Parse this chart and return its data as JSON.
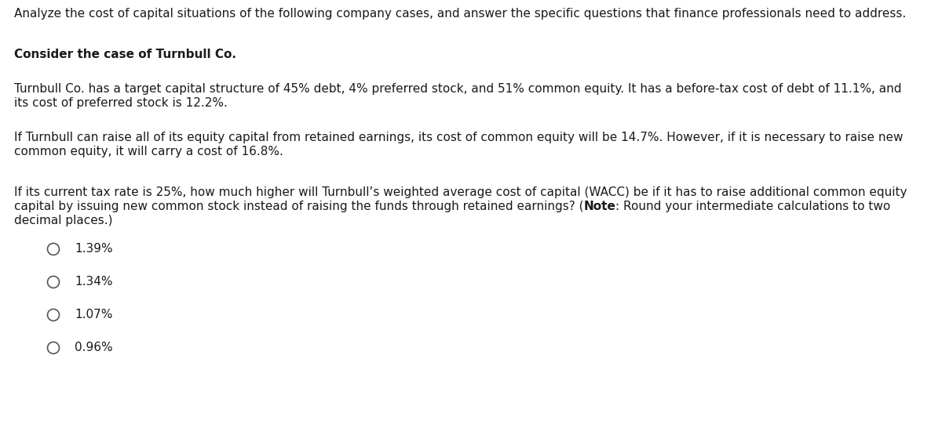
{
  "bg_color": "#ffffff",
  "text_color": "#1a1a1a",
  "intro_line": "Analyze the cost of capital situations of the following company cases, and answer the specific questions that finance professionals need to address.",
  "bold_heading": "Consider the case of Turnbull Co.",
  "p1_line1": "Turnbull Co. has a target capital structure of 45% debt, 4% preferred stock, and 51% common equity. It has a before-tax cost of debt of 11.1%, and",
  "p1_line2": "its cost of preferred stock is 12.2%.",
  "p2_line1": "If Turnbull can raise all of its equity capital from retained earnings, its cost of common equity will be 14.7%. However, if it is necessary to raise new",
  "p2_line2": "common equity, it will carry a cost of 16.8%.",
  "q_line1": "If its current tax rate is 25%, how much higher will Turnbull’s weighted average cost of capital (WACC) be if it has to raise additional common equity",
  "q_line2_pre": "capital by issuing new common stock instead of raising the funds through retained earnings? (",
  "q_line2_bold": "Note",
  "q_line2_post": ": Round your intermediate calculations to two",
  "q_line3": "decimal places.)",
  "choices": [
    "1.39%",
    "1.34%",
    "1.07%",
    "0.96%"
  ],
  "font_family": "DejaVu Sans",
  "font_size": 11.0
}
